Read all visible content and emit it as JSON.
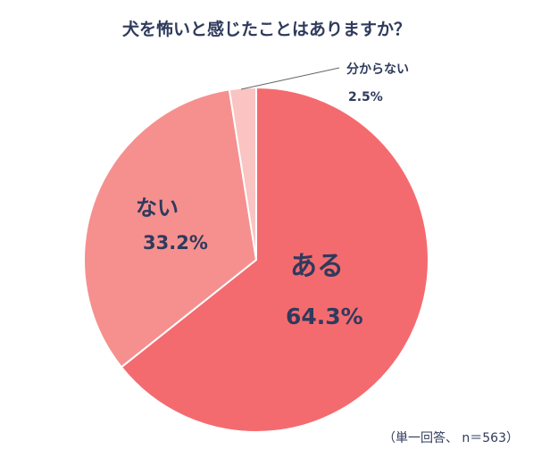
{
  "chart_data": {
    "type": "pie",
    "title": "犬を怖いと感じたことはありますか？",
    "slices": [
      {
        "label": "ある",
        "value": 64.3,
        "display": "64.3%",
        "color": "#f46b6f"
      },
      {
        "label": "ない",
        "value": 33.2,
        "display": "33.2%",
        "color": "#f5908f"
      },
      {
        "label": "分からない",
        "value": 2.5,
        "display": "2.5%",
        "color": "#f9c4c2"
      }
    ],
    "start_angle": "12 o'clock",
    "direction": "clockwise",
    "legend": "none"
  },
  "note": "（単一回答、 n＝563）"
}
